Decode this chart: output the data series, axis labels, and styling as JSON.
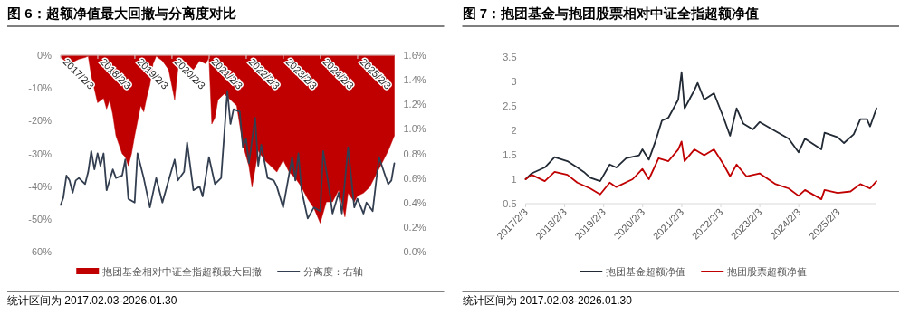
{
  "chart_data": [
    {
      "type": "area",
      "title": "图 6：超额净值最大回撤与分离度对比",
      "annotations": [
        "统计区间为 2017.02.03-2026.01.30"
      ],
      "legend": "bottom",
      "xlim": [
        "2017-02-03",
        "2026-01-30"
      ],
      "xticks": [
        {
          "value": "2017-02-03",
          "label": "2017/2/3"
        },
        {
          "value": "2018-02-03",
          "label": "2018/2/3"
        },
        {
          "value": "2019-02-03",
          "label": "2019/2/3"
        },
        {
          "value": "2020-02-03",
          "label": "2020/2/3"
        },
        {
          "value": "2021-02-03",
          "label": "2021/2/3"
        },
        {
          "value": "2022-02-03",
          "label": "2022/2/3"
        },
        {
          "value": "2023-02-03",
          "label": "2023/2/3"
        },
        {
          "value": "2024-02-03",
          "label": "2024/2/3"
        },
        {
          "value": "2025-02-03",
          "label": "2025/2/3"
        }
      ],
      "ylim": [
        -60,
        0
      ],
      "yticks": [
        {
          "value": -60,
          "label": "-60%"
        },
        {
          "value": -50,
          "label": "-50%"
        },
        {
          "value": -40,
          "label": "-40%"
        },
        {
          "value": -30,
          "label": "-30%"
        },
        {
          "value": -20,
          "label": "-20%"
        },
        {
          "value": -10,
          "label": "-10%"
        },
        {
          "value": 0,
          "label": "0%"
        }
      ],
      "y2lim": [
        0,
        1.6
      ],
      "y2ticks": [
        {
          "value": 0,
          "label": "0.0%"
        },
        {
          "value": 0.2,
          "label": "0.2%"
        },
        {
          "value": 0.4,
          "label": "0.4%"
        },
        {
          "value": 0.6,
          "label": "0.6%"
        },
        {
          "value": 0.8,
          "label": "0.8%"
        },
        {
          "value": 1.0,
          "label": "1.0%"
        },
        {
          "value": 1.2,
          "label": "1.2%"
        },
        {
          "value": 1.4,
          "label": "1.4%"
        },
        {
          "value": 1.6,
          "label": "1.6%"
        }
      ],
      "series": [
        {
          "name": "抱团基金相对中证全指超额最大回撤",
          "type": "area",
          "color": "#c00000",
          "x": [
            "2017-02-03",
            "2017-05",
            "2017-08",
            "2017-10",
            "2017-11",
            "2017-12",
            "2018-02",
            "2018-04",
            "2018-05",
            "2018-06",
            "2018-07",
            "2018-08",
            "2018-10",
            "2018-11",
            "2018-12",
            "2019-01",
            "2019-02",
            "2019-04",
            "2019-05",
            "2019-06",
            "2019-07",
            "2019-08",
            "2019-09",
            "2019-11",
            "2020-01",
            "2020-03",
            "2020-04",
            "2020-05",
            "2020-07",
            "2020-09",
            "2020-11",
            "2021-01",
            "2021-02",
            "2021-03",
            "2021-04",
            "2021-05",
            "2021-07",
            "2021-09",
            "2021-11",
            "2022-01",
            "2022-03",
            "2022-04",
            "2022-06",
            "2022-08",
            "2022-10",
            "2022-12",
            "2023-02",
            "2023-04",
            "2023-06",
            "2023-08",
            "2023-10",
            "2023-12",
            "2024-02",
            "2024-04",
            "2024-06",
            "2024-08",
            "2024-10",
            "2024-11",
            "2025-01",
            "2025-02",
            "2025-04",
            "2025-06",
            "2025-08",
            "2025-10",
            "2025-12",
            "2026-01-30"
          ],
          "values": [
            -0.7,
            -2.6,
            -1.2,
            -0.7,
            -0.3,
            -6.2,
            -14.5,
            -13.1,
            -16.4,
            -13.6,
            -18.2,
            -24.6,
            -30.1,
            -31.1,
            -33.8,
            -30.1,
            -24.6,
            -15.4,
            -17.3,
            -12.7,
            -9.0,
            -2.6,
            -0.3,
            -1.7,
            -4.4,
            -13.6,
            -4.4,
            -0.7,
            -2.6,
            -4.4,
            -1.7,
            -2.6,
            -0.7,
            -21.0,
            -19.1,
            -13.6,
            -11.8,
            -13.6,
            -15.4,
            -27.4,
            -33.8,
            -40.3,
            -29.2,
            -32.0,
            -33.8,
            -35.7,
            -32.0,
            -35.7,
            -37.5,
            -40.3,
            -43.9,
            -46.7,
            -51.3,
            -44.8,
            -44.8,
            -41.2,
            -49.4,
            -42.1,
            -44.8,
            -43.0,
            -42.1,
            -40.3,
            -36.6,
            -32.9,
            -29.2,
            -24.6
          ]
        },
        {
          "name": "分离度：右轴",
          "type": "line",
          "axis": "y2",
          "color": "#333f50",
          "x": [
            "2017-02-03",
            "2017-03",
            "2017-04",
            "2017-05",
            "2017-06",
            "2017-07",
            "2017-08",
            "2017-10",
            "2017-11",
            "2017-12",
            "2018-01",
            "2018-02",
            "2018-03",
            "2018-04",
            "2018-05",
            "2018-07",
            "2018-08",
            "2018-10",
            "2018-11",
            "2018-12",
            "2019-02",
            "2019-03",
            "2019-05",
            "2019-07",
            "2019-09",
            "2019-11",
            "2020-01",
            "2020-03",
            "2020-04",
            "2020-06",
            "2020-07",
            "2020-09",
            "2020-11",
            "2020-12",
            "2021-02",
            "2021-04",
            "2021-06",
            "2021-08",
            "2021-09",
            "2021-10",
            "2021-12",
            "2022-01",
            "2022-02",
            "2022-03",
            "2022-05",
            "2022-06",
            "2022-07",
            "2022-09",
            "2022-11",
            "2022-12",
            "2023-02",
            "2023-05",
            "2023-06",
            "2023-07",
            "2023-08",
            "2023-10",
            "2023-12",
            "2024-02",
            "2024-03",
            "2024-05",
            "2024-06",
            "2024-08",
            "2024-09",
            "2024-11",
            "2025-01",
            "2025-02",
            "2025-04",
            "2025-05",
            "2025-07",
            "2025-09",
            "2025-11",
            "2025-12",
            "2026-01",
            "2026-01-30"
          ],
          "values": [
            0.38,
            0.44,
            0.62,
            0.58,
            0.48,
            0.58,
            0.6,
            0.55,
            0.65,
            0.82,
            0.67,
            0.8,
            0.7,
            0.8,
            0.5,
            0.67,
            0.6,
            0.62,
            0.75,
            0.43,
            0.4,
            0.8,
            0.6,
            0.36,
            0.6,
            0.4,
            0.58,
            0.75,
            0.58,
            0.65,
            0.89,
            0.5,
            0.53,
            0.45,
            0.77,
            0.55,
            0.6,
            1.31,
            1.04,
            1.16,
            1.14,
            0.85,
            0.92,
            0.72,
            1.09,
            0.7,
            0.87,
            0.6,
            0.58,
            0.53,
            0.36,
            0.77,
            0.58,
            0.8,
            0.5,
            0.27,
            0.36,
            0.33,
            0.82,
            0.5,
            0.31,
            0.48,
            0.31,
            0.85,
            0.36,
            0.43,
            0.31,
            0.4,
            0.33,
            0.77,
            0.62,
            0.55,
            0.58,
            0.72
          ]
        }
      ]
    },
    {
      "type": "line",
      "title": "图 7：抱团基金与抱团股票相对中证全指超额净值",
      "annotations": [
        "统计区间为 2017.02.03-2026.01.30"
      ],
      "legend": "bottom",
      "xlim": [
        "2017-02-03",
        "2026-01-30"
      ],
      "xticks": [
        {
          "value": "2017-02-03",
          "label": "2017/2/3"
        },
        {
          "value": "2018-02-03",
          "label": "2018/2/3"
        },
        {
          "value": "2019-02-03",
          "label": "2019/2/3"
        },
        {
          "value": "2020-02-03",
          "label": "2020/2/3"
        },
        {
          "value": "2021-02-03",
          "label": "2021/2/3"
        },
        {
          "value": "2022-02-03",
          "label": "2022/2/3"
        },
        {
          "value": "2023-02-03",
          "label": "2023/2/3"
        },
        {
          "value": "2024-02-03",
          "label": "2024/2/3"
        },
        {
          "value": "2025-02-03",
          "label": "2025/2/3"
        }
      ],
      "ylim": [
        0.5,
        3.5
      ],
      "yticks": [
        0.5,
        1,
        1.5,
        2,
        2.5,
        3,
        3.5
      ],
      "series": [
        {
          "name": "抱团基金超额净值",
          "color": "#222a35",
          "x": [
            "2017-02-03",
            "2017-04",
            "2017-08",
            "2017-11",
            "2018-03",
            "2018-06",
            "2018-08",
            "2018-10",
            "2019-01",
            "2019-04",
            "2019-06",
            "2019-09",
            "2020-01",
            "2020-02",
            "2020-04",
            "2020-06",
            "2020-08",
            "2020-10",
            "2021-01",
            "2021-02",
            "2021-03",
            "2021-06",
            "2021-07",
            "2021-09",
            "2021-12",
            "2022-03",
            "2022-05",
            "2022-07",
            "2022-09",
            "2022-12",
            "2023-02",
            "2023-07",
            "2023-11",
            "2024-02",
            "2024-04",
            "2024-09",
            "2024-10",
            "2025-02",
            "2025-04",
            "2025-07",
            "2025-09",
            "2025-11",
            "2025-12",
            "2026-01-30"
          ],
          "values": [
            1.0,
            1.12,
            1.24,
            1.45,
            1.37,
            1.24,
            1.15,
            1.03,
            0.96,
            1.3,
            1.24,
            1.43,
            1.49,
            1.61,
            1.4,
            1.77,
            2.2,
            2.26,
            2.63,
            3.19,
            2.45,
            2.82,
            2.97,
            2.63,
            2.76,
            2.26,
            1.89,
            2.45,
            2.14,
            2.02,
            2.17,
            1.98,
            1.83,
            1.55,
            1.83,
            1.61,
            1.95,
            1.86,
            1.74,
            1.92,
            2.23,
            2.23,
            2.08,
            2.45
          ]
        },
        {
          "name": "抱团股票超额净值",
          "color": "#c00000",
          "x": [
            "2017-02-03",
            "2017-04",
            "2017-08",
            "2017-11",
            "2018-03",
            "2018-06",
            "2018-10",
            "2019-01",
            "2019-04",
            "2019-06",
            "2019-11",
            "2020-02",
            "2020-04",
            "2020-07",
            "2020-10",
            "2021-01",
            "2021-02",
            "2021-03",
            "2021-06",
            "2021-09",
            "2021-12",
            "2022-03",
            "2022-05",
            "2022-07",
            "2022-10",
            "2023-02",
            "2023-07",
            "2023-11",
            "2024-02",
            "2024-04",
            "2024-09",
            "2024-10",
            "2025-02",
            "2025-06",
            "2025-09",
            "2025-12",
            "2026-01-30"
          ],
          "values": [
            1.0,
            1.09,
            0.96,
            1.15,
            1.09,
            0.93,
            0.81,
            0.69,
            0.93,
            0.84,
            1.0,
            1.21,
            1.0,
            1.43,
            1.37,
            1.61,
            1.77,
            1.37,
            1.61,
            1.49,
            1.61,
            1.3,
            1.06,
            1.3,
            1.06,
            1.12,
            0.9,
            0.81,
            0.66,
            0.78,
            0.59,
            0.78,
            0.72,
            0.75,
            0.9,
            0.81,
            0.96
          ]
        }
      ]
    }
  ]
}
